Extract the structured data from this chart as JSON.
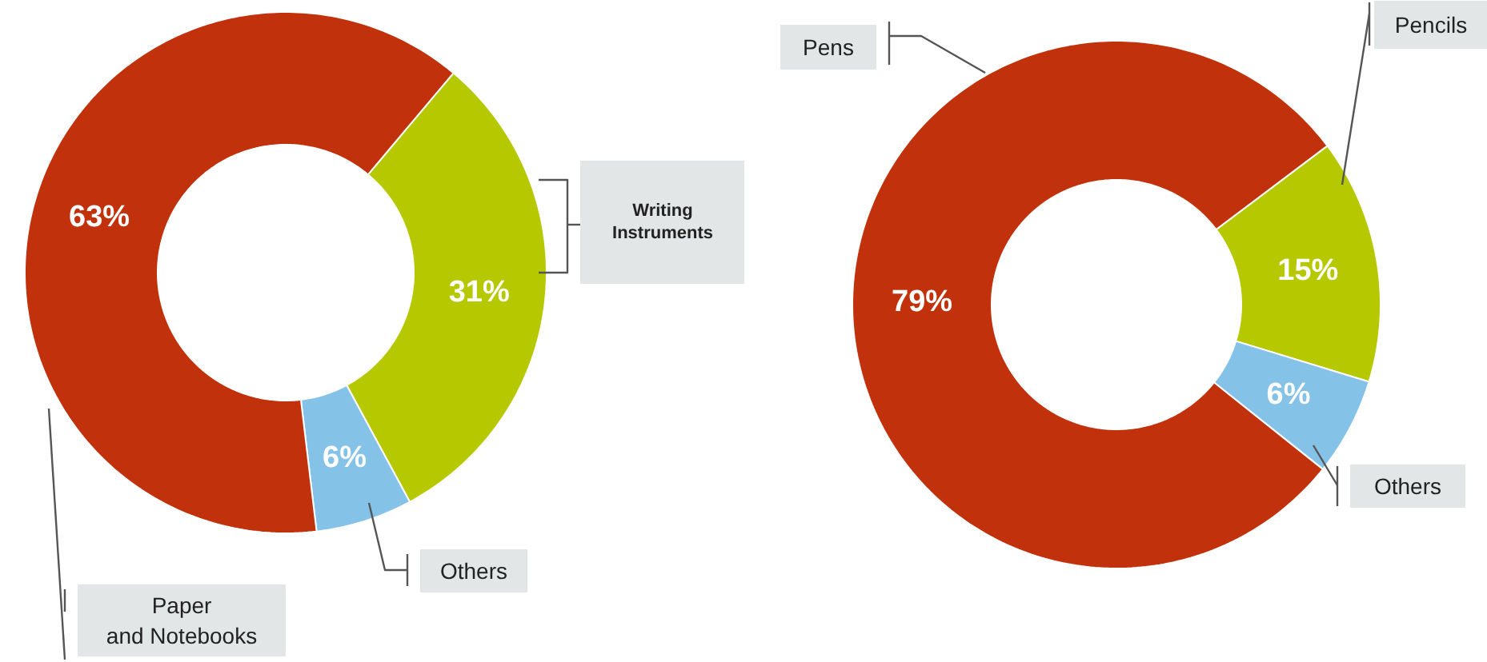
{
  "chart_data": [
    {
      "type": "donut",
      "categories": [
        "Writing Instruments",
        "Others",
        "Paper and Notebooks"
      ],
      "values": [
        31,
        6,
        63
      ],
      "colors": [
        "#b5c800",
        "#85c2e8",
        "#c1320c"
      ],
      "value_labels": [
        "31%",
        "6%",
        "63%"
      ]
    },
    {
      "type": "donut",
      "categories": [
        "Pencils",
        "Others",
        "Pens"
      ],
      "values": [
        15,
        6,
        79
      ],
      "colors": [
        "#b5c800",
        "#85c2e8",
        "#c1320c"
      ],
      "value_labels": [
        "15%",
        "6%",
        "79%"
      ]
    }
  ]
}
